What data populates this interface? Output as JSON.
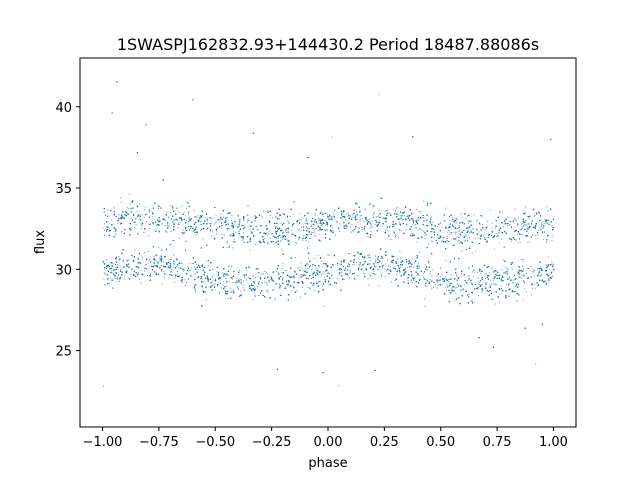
{
  "chart_data": {
    "type": "scatter",
    "title": "1SWASPJ162832.93+144430.2 Period 18487.88086s",
    "xlabel": "phase",
    "ylabel": "flux",
    "xlim": [
      -1.1,
      1.1
    ],
    "ylim": [
      20.3,
      43.0
    ],
    "x_ticks": [
      -1.0,
      -0.75,
      -0.5,
      -0.25,
      0.0,
      0.25,
      0.5,
      0.75,
      1.0
    ],
    "x_tick_labels": [
      "−1.00",
      "−0.75",
      "−0.50",
      "−0.25",
      "0.00",
      "0.25",
      "0.50",
      "0.75",
      "1.00"
    ],
    "y_ticks": [
      25,
      30,
      35,
      40
    ],
    "y_tick_labels": [
      "25",
      "30",
      "35",
      "40"
    ],
    "grid": false,
    "point_color": "#1f77b4",
    "series": [
      {
        "x_range": [
          -1.0,
          1.0
        ],
        "envelope": [
          {
            "x": -1.0,
            "lower": 28.5,
            "upper": 34.3
          },
          {
            "x": -0.9,
            "lower": 28.8,
            "upper": 34.4
          },
          {
            "x": -0.75,
            "lower": 29.0,
            "upper": 34.4
          },
          {
            "x": -0.6,
            "lower": 28.3,
            "upper": 34.3
          },
          {
            "x": -0.5,
            "lower": 27.6,
            "upper": 34.2
          },
          {
            "x": -0.35,
            "lower": 27.6,
            "upper": 34.0
          },
          {
            "x": -0.25,
            "lower": 27.7,
            "upper": 34.1
          },
          {
            "x": -0.1,
            "lower": 28.0,
            "upper": 34.2
          },
          {
            "x": 0.0,
            "lower": 28.5,
            "upper": 34.3
          },
          {
            "x": 0.1,
            "lower": 28.8,
            "upper": 34.4
          },
          {
            "x": 0.25,
            "lower": 29.0,
            "upper": 34.4
          },
          {
            "x": 0.4,
            "lower": 28.3,
            "upper": 34.3
          },
          {
            "x": 0.5,
            "lower": 27.6,
            "upper": 34.2
          },
          {
            "x": 0.65,
            "lower": 27.6,
            "upper": 34.0
          },
          {
            "x": 0.75,
            "lower": 27.7,
            "upper": 34.1
          },
          {
            "x": 0.9,
            "lower": 28.0,
            "upper": 34.2
          },
          {
            "x": 1.0,
            "lower": 28.5,
            "upper": 34.3
          }
        ],
        "outlier_range": [
          21.5,
          41.8
        ]
      }
    ]
  }
}
